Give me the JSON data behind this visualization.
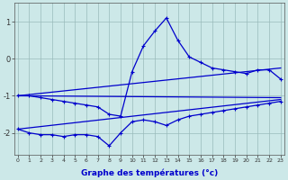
{
  "xlabel": "Graphe des températures (°c)",
  "background_color": "#cce8e8",
  "line_color": "#0000cc",
  "grid_color": "#99bbbb",
  "x_ticks": [
    0,
    1,
    2,
    3,
    4,
    5,
    6,
    7,
    8,
    9,
    10,
    11,
    12,
    13,
    14,
    15,
    16,
    17,
    18,
    19,
    20,
    21,
    22,
    23
  ],
  "ylim": [
    -2.6,
    1.5
  ],
  "xlim": [
    -0.3,
    23.3
  ],
  "yticks": [
    -2,
    -1,
    0,
    1
  ],
  "series_main": {
    "x": [
      0,
      1,
      2,
      3,
      4,
      5,
      6,
      7,
      8,
      9,
      10,
      11,
      12,
      13,
      14,
      15,
      16,
      17,
      18,
      19,
      20,
      21,
      22,
      23
    ],
    "y": [
      -1.0,
      -1.0,
      -1.05,
      -1.1,
      -1.15,
      -1.2,
      -1.25,
      -1.3,
      -1.5,
      -1.55,
      -0.35,
      0.35,
      0.75,
      1.1,
      0.5,
      0.05,
      -0.1,
      -0.25,
      -0.3,
      -0.35,
      -0.4,
      -0.3,
      -0.3,
      -0.55
    ]
  },
  "series_bottom": {
    "x": [
      0,
      1,
      2,
      3,
      4,
      5,
      6,
      7,
      8,
      9,
      10,
      11,
      12,
      13,
      14,
      15,
      16,
      17,
      18,
      19,
      20,
      21,
      22,
      23
    ],
    "y": [
      -1.9,
      -2.0,
      -2.05,
      -2.05,
      -2.1,
      -2.05,
      -2.05,
      -2.1,
      -2.35,
      -2.0,
      -1.7,
      -1.65,
      -1.7,
      -1.8,
      -1.65,
      -1.55,
      -1.5,
      -1.45,
      -1.4,
      -1.35,
      -1.3,
      -1.25,
      -1.2,
      -1.15
    ]
  },
  "series_line1": {
    "x": [
      0,
      23
    ],
    "y": [
      -1.0,
      -1.05
    ]
  },
  "series_line2": {
    "x": [
      0,
      23
    ],
    "y": [
      -1.9,
      -1.1
    ]
  },
  "series_line3": {
    "x": [
      0,
      23
    ],
    "y": [
      -1.0,
      -0.25
    ]
  },
  "marker_size": 3,
  "line_width": 0.9
}
